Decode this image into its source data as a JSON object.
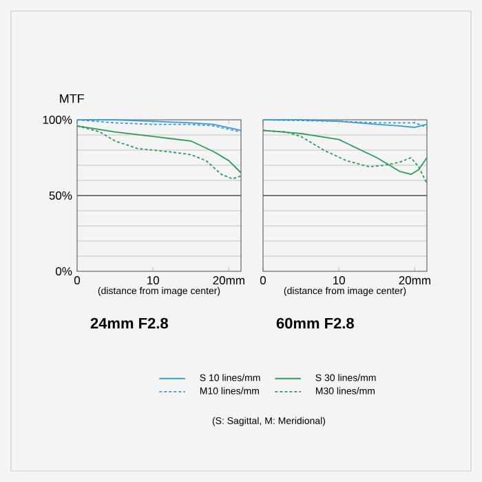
{
  "chart_data": [
    {
      "type": "line",
      "title": "24mm F2.8",
      "ylabel": "MTF",
      "xlabel": "(distance from image center)",
      "annotations": [
        "(S: Sagittal, M: Meridional)"
      ],
      "xlim": [
        0,
        21.6
      ],
      "xticks": [
        0,
        10,
        {
          "value": 20,
          "label": "20mm"
        }
      ],
      "ylim": [
        0,
        100
      ],
      "yticks": [
        {
          "value": 0,
          "label": "0%"
        },
        {
          "value": 10,
          "label": null
        },
        {
          "value": 20,
          "label": null
        },
        {
          "value": 30,
          "label": null
        },
        {
          "value": 40,
          "label": null
        },
        {
          "value": 50,
          "label": "50%"
        },
        {
          "value": 60,
          "label": null
        },
        {
          "value": 70,
          "label": null
        },
        {
          "value": 80,
          "label": null
        },
        {
          "value": 90,
          "label": null
        },
        {
          "value": 100,
          "label": "100%"
        }
      ],
      "grid": "y",
      "legend": "bottom",
      "ref_lines": [
        {
          "axis": "y",
          "value": 50,
          "color": "#555555"
        }
      ],
      "series": [
        {
          "name": "S 10 lines/mm",
          "color": "#3a9ad9",
          "line_style": "solid",
          "x": [
            0,
            5,
            10,
            15,
            18,
            21.6
          ],
          "values": [
            100,
            100,
            99,
            98,
            97,
            93
          ]
        },
        {
          "name": "S 30 lines/mm",
          "color": "#2e9a5a",
          "line_style": "solid",
          "x": [
            0,
            5,
            10,
            15,
            18,
            20,
            21.6
          ],
          "values": [
            96,
            92,
            89,
            86,
            79,
            73,
            65
          ]
        },
        {
          "name": "M10 lines/mm",
          "color": "#3a9ad9",
          "line_style": "dashed",
          "x": [
            0,
            5,
            10,
            15,
            18,
            21.6
          ],
          "values": [
            100,
            98,
            97,
            97,
            96,
            92
          ]
        },
        {
          "name": "M30 lines/mm",
          "color": "#2e9a5a",
          "line_style": "dashed",
          "x": [
            0,
            3,
            5,
            8,
            12,
            15,
            17,
            19,
            20.5,
            21.6
          ],
          "values": [
            96,
            92,
            86,
            81,
            79,
            77,
            73,
            64,
            61,
            63
          ]
        }
      ]
    },
    {
      "type": "line",
      "title": "60mm F2.8",
      "xlabel": "(distance from image center)",
      "xlim": [
        0,
        21.6
      ],
      "xticks": [
        0,
        10,
        {
          "value": 20,
          "label": "20mm"
        }
      ],
      "ylim": [
        0,
        100
      ],
      "yticks": [
        0,
        10,
        20,
        30,
        40,
        50,
        60,
        70,
        80,
        90,
        100
      ],
      "tick_labels": "x",
      "grid": "y",
      "ref_lines": [
        {
          "axis": "y",
          "value": 50,
          "color": "#555555"
        }
      ],
      "series": [
        {
          "color": "#3a9ad9",
          "line_style": "solid",
          "x": [
            0,
            5,
            10,
            15,
            18,
            20,
            21.6
          ],
          "values": [
            100,
            100,
            99,
            97,
            96,
            95,
            97
          ]
        },
        {
          "color": "#2e9a5a",
          "line_style": "solid",
          "x": [
            0,
            5,
            10,
            15,
            18,
            19.5,
            20.5,
            21.6
          ],
          "values": [
            93,
            91,
            87,
            75,
            66,
            64,
            67,
            75
          ]
        },
        {
          "color": "#3a9ad9",
          "line_style": "dashed",
          "x": [
            0,
            10,
            15,
            18,
            20,
            21.6
          ],
          "values": [
            100,
            99,
            98,
            98,
            98,
            95
          ]
        },
        {
          "color": "#2e9a5a",
          "line_style": "dashed",
          "x": [
            0,
            3,
            5,
            8,
            11,
            14,
            16,
            18,
            19.5,
            20.5,
            21.6
          ],
          "values": [
            93,
            92,
            89,
            80,
            73,
            69,
            70,
            72,
            75,
            69,
            58
          ]
        }
      ]
    }
  ]
}
